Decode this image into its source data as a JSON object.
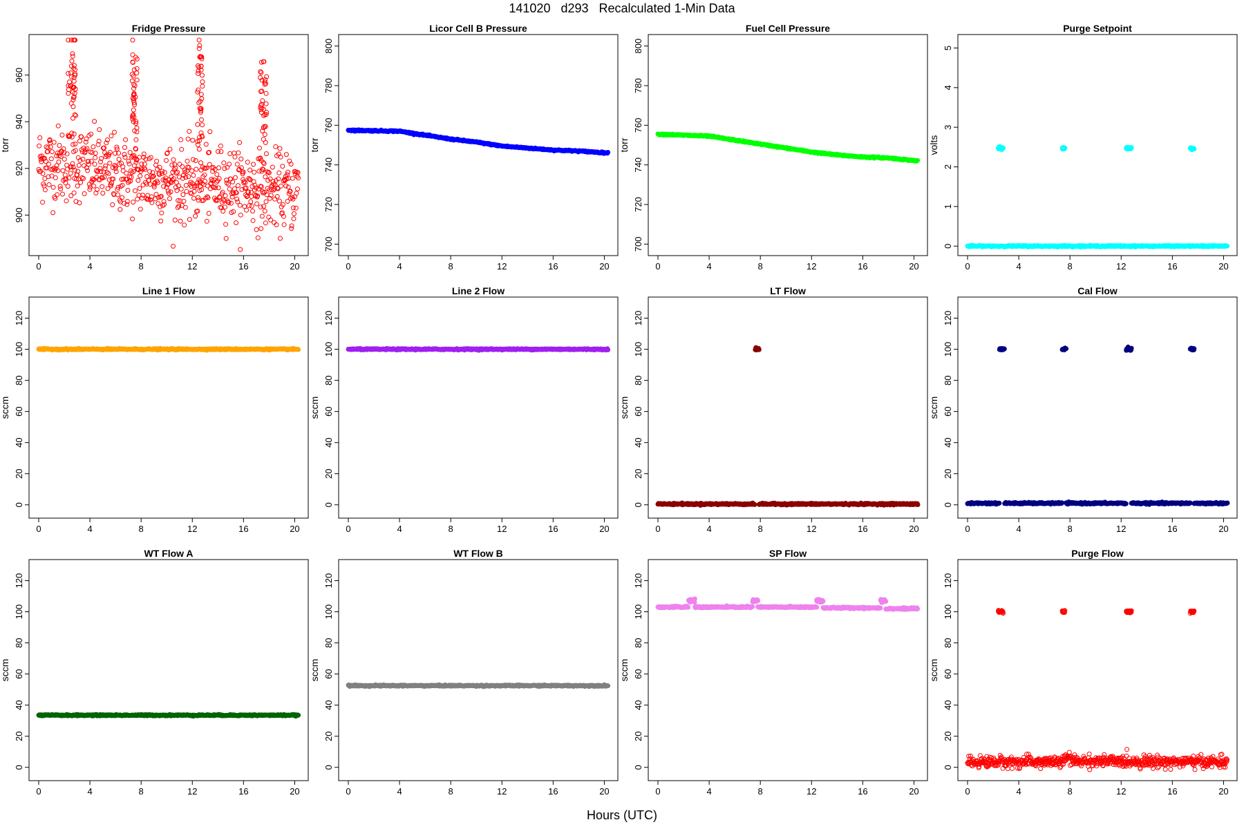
{
  "figure": {
    "title": "141020   d293   Recalculated 1-Min Data",
    "xlabel": "Hours (UTC)"
  },
  "chart_data": [
    {
      "type": "scatter",
      "title": "Fridge Pressure",
      "ylabel": "torr",
      "xlim": [
        0,
        20.3
      ],
      "ylim": [
        885,
        975
      ],
      "yticks": [
        900,
        920,
        940,
        960
      ],
      "xticks": [
        0,
        4,
        8,
        12,
        16,
        20
      ],
      "color": "#ff0000",
      "marker": "open",
      "gen": {
        "kind": "noisy",
        "base": [
          [
            0,
            922
          ],
          [
            3,
            922
          ],
          [
            6,
            918
          ],
          [
            9,
            915
          ],
          [
            12,
            914
          ],
          [
            15,
            913
          ],
          [
            17.5,
            911
          ],
          [
            20.3,
            910
          ]
        ],
        "noise": 8
      },
      "spikes": [
        [
          2.3,
          2.9,
          960,
          12
        ],
        [
          7.3,
          7.7,
          950,
          12
        ],
        [
          12.4,
          12.8,
          950,
          12
        ],
        [
          17.3,
          17.8,
          950,
          12
        ]
      ]
    },
    {
      "type": "scatter",
      "title": "Licor Cell B Pressure",
      "ylabel": "torr",
      "xlim": [
        0,
        20.3
      ],
      "ylim": [
        697,
        803
      ],
      "yticks": [
        700,
        720,
        740,
        760,
        780,
        800
      ],
      "xticks": [
        0,
        4,
        8,
        12,
        16,
        20
      ],
      "color": "#0000ff",
      "marker": "filled",
      "gen": {
        "kind": "line",
        "pts": [
          [
            0,
            757.5
          ],
          [
            4,
            757
          ],
          [
            6,
            755
          ],
          [
            8,
            753
          ],
          [
            10,
            751.5
          ],
          [
            12,
            749.5
          ],
          [
            14,
            748.5
          ],
          [
            16,
            747.5
          ],
          [
            18,
            747
          ],
          [
            20.3,
            746
          ]
        ]
      }
    },
    {
      "type": "scatter",
      "title": "Fuel Cell Pressure",
      "ylabel": "torr",
      "xlim": [
        0,
        20.3
      ],
      "ylim": [
        697,
        803
      ],
      "yticks": [
        700,
        720,
        740,
        760,
        780,
        800
      ],
      "xticks": [
        0,
        4,
        8,
        12,
        16,
        20
      ],
      "color": "#00ff00",
      "marker": "filled",
      "gen": {
        "kind": "line",
        "pts": [
          [
            0,
            755.5
          ],
          [
            2,
            755
          ],
          [
            4,
            754.5
          ],
          [
            6,
            752.5
          ],
          [
            8,
            750.5
          ],
          [
            10,
            748.5
          ],
          [
            12,
            746.5
          ],
          [
            14,
            745
          ],
          [
            16,
            744
          ],
          [
            18,
            743.5
          ],
          [
            20.3,
            742
          ]
        ]
      }
    },
    {
      "type": "scatter",
      "title": "Purge Setpoint",
      "ylabel": "volts",
      "xlim": [
        0,
        20.3
      ],
      "ylim": [
        -0.1,
        5.2
      ],
      "yticks": [
        0,
        1,
        2,
        3,
        4,
        5
      ],
      "xticks": [
        0,
        4,
        8,
        12,
        16,
        20
      ],
      "color": "#00ffff",
      "marker": "open",
      "gen": {
        "kind": "line",
        "pts": [
          [
            0,
            0
          ],
          [
            20.3,
            0
          ]
        ]
      },
      "clusters": [
        [
          2.4,
          2.8,
          2.47
        ],
        [
          7.4,
          7.6,
          2.47
        ],
        [
          12.4,
          12.8,
          2.47
        ],
        [
          17.4,
          17.7,
          2.47
        ]
      ]
    },
    {
      "type": "scatter",
      "title": "Line 1 Flow",
      "ylabel": "sccm",
      "xlim": [
        0,
        20.3
      ],
      "ylim": [
        -5,
        130
      ],
      "yticks": [
        0,
        20,
        40,
        60,
        80,
        100,
        120
      ],
      "xticks": [
        0,
        4,
        8,
        12,
        16,
        20
      ],
      "color": "#ffa500",
      "marker": "filled",
      "gen": {
        "kind": "line",
        "pts": [
          [
            0,
            100
          ],
          [
            20.3,
            100
          ]
        ]
      }
    },
    {
      "type": "scatter",
      "title": "Line 2 Flow",
      "ylabel": "sccm",
      "xlim": [
        0,
        20.3
      ],
      "ylim": [
        -5,
        130
      ],
      "yticks": [
        0,
        20,
        40,
        60,
        80,
        100,
        120
      ],
      "xticks": [
        0,
        4,
        8,
        12,
        16,
        20
      ],
      "color": "#a020f0",
      "marker": "filled",
      "gen": {
        "kind": "line",
        "pts": [
          [
            0,
            100
          ],
          [
            20.3,
            100
          ]
        ]
      }
    },
    {
      "type": "scatter",
      "title": "LT Flow",
      "ylabel": "sccm",
      "xlim": [
        0,
        20.3
      ],
      "ylim": [
        -5,
        130
      ],
      "yticks": [
        0,
        20,
        40,
        60,
        80,
        100,
        120
      ],
      "xticks": [
        0,
        4,
        8,
        12,
        16,
        20
      ],
      "color": "#8b0000",
      "marker": "filled",
      "gen": {
        "kind": "segments",
        "segs": [
          [
            0,
            7.6,
            0.5
          ],
          [
            7.9,
            20.3,
            0.5
          ]
        ]
      },
      "clusters": [
        [
          7.6,
          7.9,
          100
        ]
      ]
    },
    {
      "type": "scatter",
      "title": "Cal Flow",
      "ylabel": "sccm",
      "xlim": [
        0,
        20.3
      ],
      "ylim": [
        -5,
        130
      ],
      "yticks": [
        0,
        20,
        40,
        60,
        80,
        100,
        120
      ],
      "xticks": [
        0,
        4,
        8,
        12,
        16,
        20
      ],
      "color": "#000080",
      "marker": "filled",
      "gen": {
        "kind": "segments",
        "segs": [
          [
            0,
            2.5,
            1
          ],
          [
            2.9,
            7.4,
            1
          ],
          [
            7.7,
            12.4,
            1
          ],
          [
            12.8,
            17.4,
            1
          ],
          [
            17.7,
            20.3,
            1
          ]
        ]
      },
      "clusters": [
        [
          2.5,
          2.9,
          100
        ],
        [
          7.4,
          7.7,
          100
        ],
        [
          12.4,
          12.8,
          100
        ],
        [
          17.4,
          17.7,
          100
        ]
      ]
    },
    {
      "type": "scatter",
      "title": "WT Flow A",
      "ylabel": "sccm",
      "xlim": [
        0,
        20.3
      ],
      "ylim": [
        -5,
        130
      ],
      "yticks": [
        0,
        20,
        40,
        60,
        80,
        100,
        120
      ],
      "xticks": [
        0,
        4,
        8,
        12,
        16,
        20
      ],
      "color": "#006400",
      "marker": "filled",
      "gen": {
        "kind": "line",
        "pts": [
          [
            0,
            33.5
          ],
          [
            20.3,
            33.5
          ]
        ]
      }
    },
    {
      "type": "scatter",
      "title": "WT Flow B",
      "ylabel": "sccm",
      "xlim": [
        0,
        20.3
      ],
      "ylim": [
        -5,
        130
      ],
      "yticks": [
        0,
        20,
        40,
        60,
        80,
        100,
        120
      ],
      "xticks": [
        0,
        4,
        8,
        12,
        16,
        20
      ],
      "color": "#808080",
      "marker": "filled",
      "gen": {
        "kind": "line",
        "pts": [
          [
            0,
            52.5
          ],
          [
            20.3,
            52.5
          ]
        ]
      }
    },
    {
      "type": "scatter",
      "title": "SP Flow",
      "ylabel": "sccm",
      "xlim": [
        0,
        20.3
      ],
      "ylim": [
        -5,
        130
      ],
      "yticks": [
        0,
        20,
        40,
        60,
        80,
        100,
        120
      ],
      "xticks": [
        0,
        4,
        8,
        12,
        16,
        20
      ],
      "color": "#ee82ee",
      "marker": "filled",
      "gen": {
        "kind": "segments",
        "segs": [
          [
            0,
            2.4,
            103
          ],
          [
            2.9,
            7.4,
            103
          ],
          [
            7.8,
            12.4,
            103
          ],
          [
            12.9,
            17.4,
            102.5
          ],
          [
            17.8,
            20.3,
            102
          ]
        ]
      },
      "clusters": [
        [
          2.4,
          2.9,
          107
        ],
        [
          7.4,
          7.8,
          107
        ],
        [
          12.4,
          12.9,
          107
        ],
        [
          17.4,
          17.8,
          107
        ]
      ]
    },
    {
      "type": "scatter",
      "title": "Purge Flow",
      "ylabel": "sccm",
      "xlim": [
        0,
        20.3
      ],
      "ylim": [
        -5,
        130
      ],
      "yticks": [
        0,
        20,
        40,
        60,
        80,
        100,
        120
      ],
      "xticks": [
        0,
        4,
        8,
        12,
        16,
        20
      ],
      "color": "#ff0000",
      "marker": "open",
      "gen": {
        "kind": "noisy",
        "base": [
          [
            0,
            3.5
          ],
          [
            7.5,
            3.5
          ],
          [
            7.8,
            7
          ],
          [
            8.2,
            4
          ],
          [
            20.3,
            3.5
          ]
        ],
        "noise": 1.8
      },
      "clusters": [
        [
          2.4,
          2.8,
          100
        ],
        [
          7.4,
          7.6,
          100
        ],
        [
          12.4,
          12.8,
          100
        ],
        [
          17.4,
          17.7,
          100
        ]
      ]
    }
  ]
}
